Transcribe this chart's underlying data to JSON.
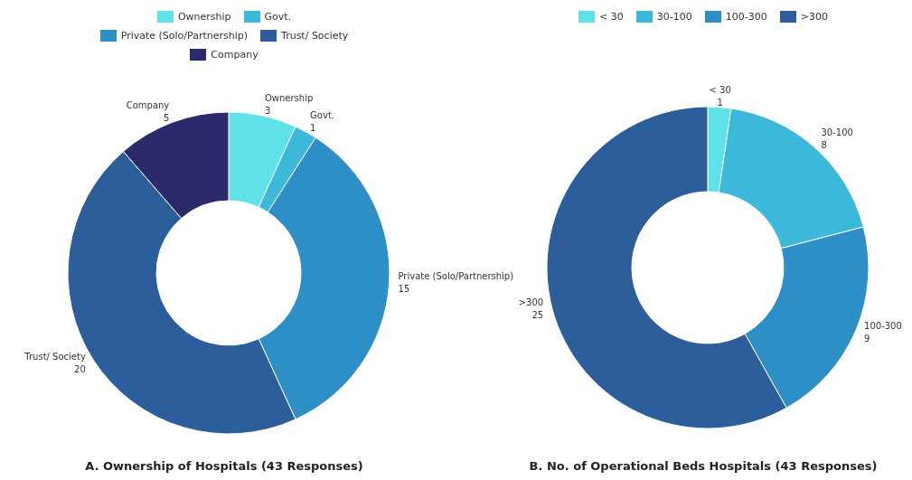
{
  "chart_data": [
    {
      "type": "donut",
      "title": "A. Ownership of Hospitals (43 Responses)",
      "categories": [
        "Ownership",
        "Govt.",
        "Private (Solo/Partnership)",
        "Trust/ Society",
        "Company"
      ],
      "values": [
        3,
        1,
        15,
        20,
        5
      ],
      "colors": [
        "#5fe1e8",
        "#3cb8db",
        "#2e8fc6",
        "#2d5e9c",
        "#2b2a6b"
      ],
      "data_labels": true,
      "legend": "top"
    },
    {
      "type": "donut",
      "title": "B. No. of Operational Beds Hospitals (43 Responses)",
      "categories": [
        "< 30",
        "30-100",
        "100-300",
        ">300"
      ],
      "values": [
        1,
        8,
        9,
        25
      ],
      "colors": [
        "#5fe1e8",
        "#3cb8db",
        "#2e8fc6",
        "#2d5e9c"
      ],
      "data_labels": true,
      "legend": "top"
    }
  ]
}
